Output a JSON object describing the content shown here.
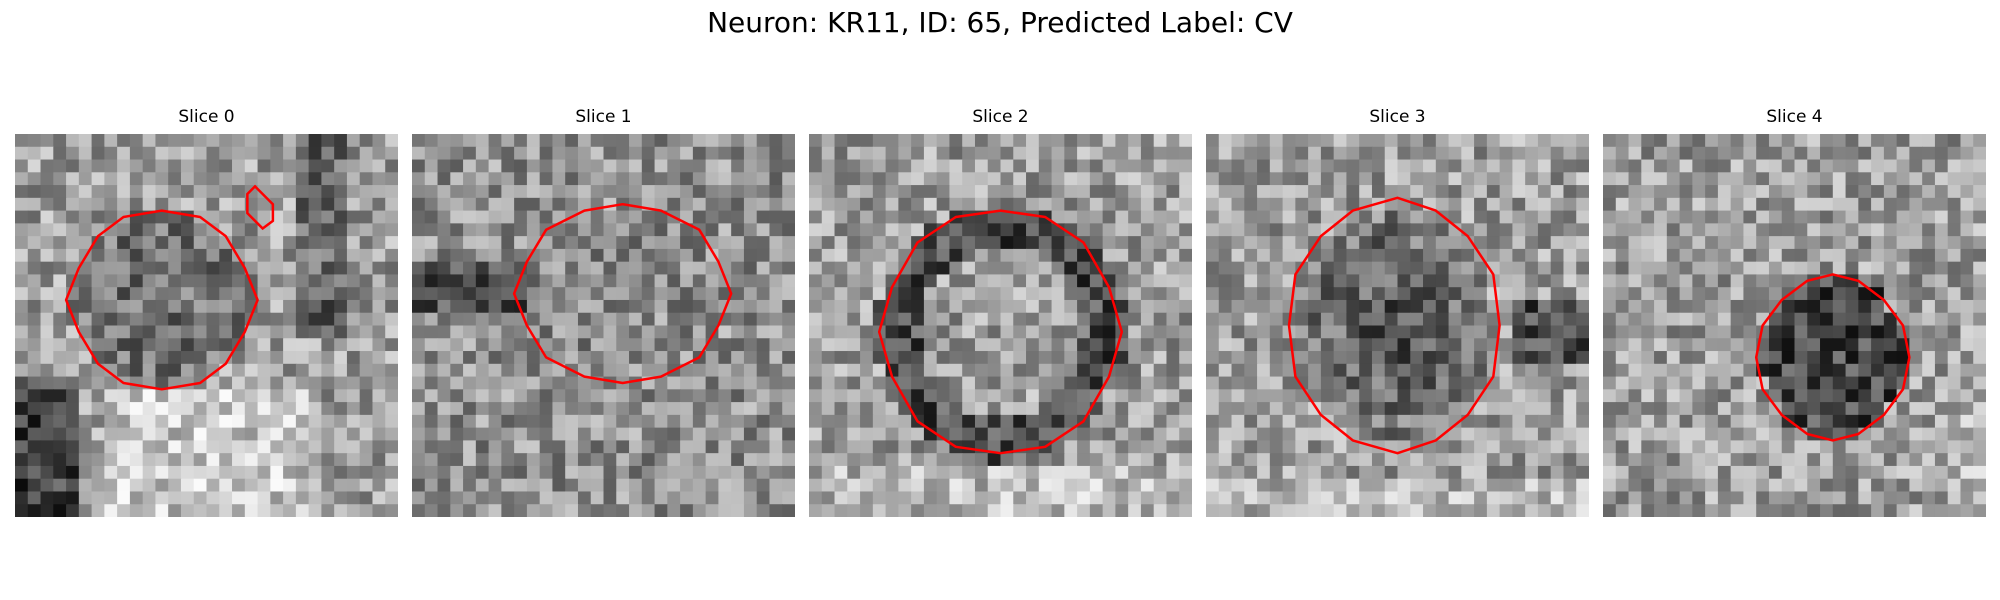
{
  "figure": {
    "title": "Neuron: KR11, ID: 65, Predicted Label: CV"
  },
  "panels": [
    {
      "title": "Slice 0",
      "seed": 11,
      "pattern": "ring-shadow"
    },
    {
      "title": "Slice 1",
      "seed": 23,
      "pattern": "noise"
    },
    {
      "title": "Slice 2",
      "seed": 37,
      "pattern": "dark-ring"
    },
    {
      "title": "Slice 3",
      "seed": 51,
      "pattern": "dark-blob"
    },
    {
      "title": "Slice 4",
      "seed": 67,
      "pattern": "small-dark-blob"
    }
  ],
  "colors": {
    "contour": "#ff0000",
    "background": "#ffffff"
  },
  "image": {
    "colormap": "gray",
    "grid": 30
  }
}
